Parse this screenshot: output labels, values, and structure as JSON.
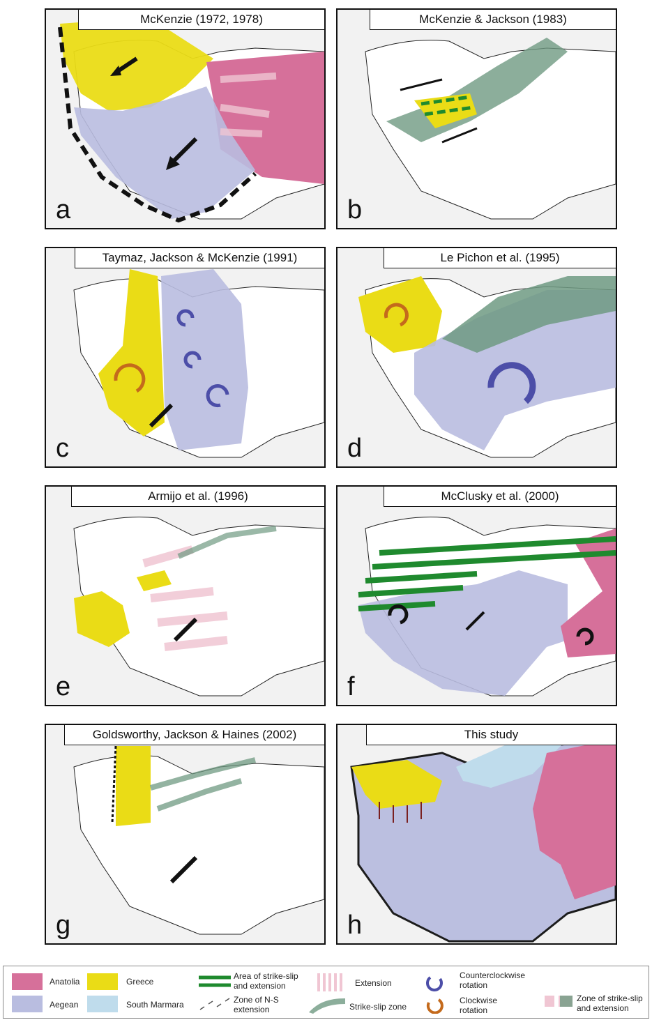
{
  "panels": [
    {
      "id": "a",
      "title": "McKenzie (1972, 1978)",
      "letter": "a"
    },
    {
      "id": "b",
      "title": "McKenzie & Jackson (1983)",
      "letter": "b"
    },
    {
      "id": "c",
      "title": "Taymaz, Jackson & McKenzie (1991)",
      "letter": "c"
    },
    {
      "id": "d",
      "title": "Le Pichon et al. (1995)",
      "letter": "d"
    },
    {
      "id": "e",
      "title": "Armijo et al. (1996)",
      "letter": "e"
    },
    {
      "id": "f",
      "title": "McClusky et al. (2000)",
      "letter": "f"
    },
    {
      "id": "g",
      "title": "Goldsworthy, Jackson & Haines (2002)",
      "letter": "g"
    },
    {
      "id": "h",
      "title": "This study",
      "letter": "h"
    }
  ],
  "legend": {
    "anatolia": "Anatolia",
    "aegean": "Aegean",
    "greece": "Greece",
    "south_marmara": "South Marmara",
    "strike_slip_ext_line1": "Area of strike-slip",
    "strike_slip_ext_line2": "and extension",
    "ns_ext_line1": "Zone of N-S",
    "ns_ext_line2": "extension",
    "extension": "Extension",
    "strike_slip_zone": "Strike-slip zone",
    "ccw_line1": "Counterclockwise",
    "ccw_line2": "rotation",
    "cw_line1": "Clockwise",
    "cw_line2": "rotation",
    "zone_ss_line1": "Zone of strike-slip",
    "zone_ss_line2": "and extension"
  },
  "colors": {
    "anatolia": "#d6709a",
    "greece": "#eadc16",
    "aegean": "#b9bde0",
    "south_marmara": "#bfdcec",
    "strike_slip": "#6f9a82",
    "extension": "#f0c6d3",
    "ccw": "#4c4ea8",
    "cw": "#c46a1c",
    "green_hatch": "#1f8a2e"
  }
}
